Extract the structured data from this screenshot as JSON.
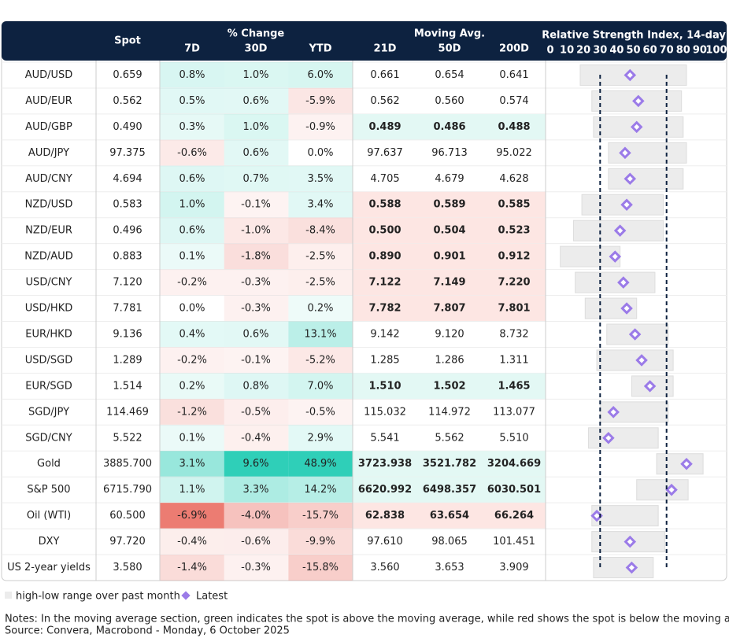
{
  "header": {
    "spot": "Spot",
    "change_group": "% Change",
    "change_cols": [
      "7D",
      "30D",
      "YTD"
    ],
    "ma_group": "Moving Avg.",
    "ma_cols": [
      "21D",
      "50D",
      "200D"
    ],
    "rsi_title": "Relative Strength Index, 14-day"
  },
  "rows": [
    {
      "name": "AUD/USD",
      "spot": "0.659",
      "change": [
        "0.8%",
        "1.0%",
        "6.0%"
      ],
      "ma": [
        "0.661",
        "0.654",
        "0.641"
      ],
      "rsi": {
        "low": 18,
        "high": 82,
        "latest": 48
      }
    },
    {
      "name": "AUD/EUR",
      "spot": "0.562",
      "change": [
        "0.5%",
        "0.6%",
        "-5.9%"
      ],
      "ma": [
        "0.562",
        "0.560",
        "0.574"
      ],
      "rsi": {
        "low": 25,
        "high": 79,
        "latest": 53
      }
    },
    {
      "name": "AUD/GBP",
      "spot": "0.490",
      "change": [
        "0.3%",
        "1.0%",
        "-0.9%"
      ],
      "ma": [
        "0.489",
        "0.486",
        "0.488"
      ],
      "rsi": {
        "low": 26,
        "high": 80,
        "latest": 52
      }
    },
    {
      "name": "AUD/JPY",
      "spot": "97.375",
      "change": [
        "-0.6%",
        "0.6%",
        "0.0%"
      ],
      "ma": [
        "97.637",
        "96.713",
        "95.022"
      ],
      "rsi": {
        "low": 35,
        "high": 82,
        "latest": 45
      }
    },
    {
      "name": "AUD/CNY",
      "spot": "4.694",
      "change": [
        "0.6%",
        "0.7%",
        "3.5%"
      ],
      "ma": [
        "4.705",
        "4.679",
        "4.628"
      ],
      "rsi": {
        "low": 35,
        "high": 80,
        "latest": 48
      }
    },
    {
      "name": "NZD/USD",
      "spot": "0.583",
      "change": [
        "1.0%",
        "-0.1%",
        "3.4%"
      ],
      "ma": [
        "0.588",
        "0.589",
        "0.585"
      ],
      "rsi": {
        "low": 19,
        "high": 68,
        "latest": 46
      }
    },
    {
      "name": "NZD/EUR",
      "spot": "0.496",
      "change": [
        "0.6%",
        "-1.0%",
        "-8.4%"
      ],
      "ma": [
        "0.500",
        "0.504",
        "0.523"
      ],
      "rsi": {
        "low": 14,
        "high": 68,
        "latest": 42
      }
    },
    {
      "name": "NZD/AUD",
      "spot": "0.883",
      "change": [
        "0.1%",
        "-1.8%",
        "-2.5%"
      ],
      "ma": [
        "0.890",
        "0.901",
        "0.912"
      ],
      "rsi": {
        "low": 6,
        "high": 42,
        "latest": 39
      }
    },
    {
      "name": "USD/CNY",
      "spot": "7.120",
      "change": [
        "-0.2%",
        "-0.3%",
        "-2.5%"
      ],
      "ma": [
        "7.122",
        "7.149",
        "7.220"
      ],
      "rsi": {
        "low": 15,
        "high": 63,
        "latest": 44
      }
    },
    {
      "name": "USD/HKD",
      "spot": "7.781",
      "change": [
        "0.0%",
        "-0.3%",
        "0.2%"
      ],
      "ma": [
        "7.782",
        "7.807",
        "7.801"
      ],
      "rsi": {
        "low": 21,
        "high": 52,
        "latest": 46
      }
    },
    {
      "name": "EUR/HKD",
      "spot": "9.136",
      "change": [
        "0.4%",
        "0.6%",
        "13.1%"
      ],
      "ma": [
        "9.142",
        "9.120",
        "8.732"
      ],
      "rsi": {
        "low": 34,
        "high": 71,
        "latest": 51
      }
    },
    {
      "name": "USD/SGD",
      "spot": "1.289",
      "change": [
        "-0.2%",
        "-0.1%",
        "-5.2%"
      ],
      "ma": [
        "1.285",
        "1.286",
        "1.311"
      ],
      "rsi": {
        "low": 28,
        "high": 74,
        "latest": 55
      }
    },
    {
      "name": "EUR/SGD",
      "spot": "1.514",
      "change": [
        "0.2%",
        "0.8%",
        "7.0%"
      ],
      "ma": [
        "1.510",
        "1.502",
        "1.465"
      ],
      "rsi": {
        "low": 49,
        "high": 74,
        "latest": 60
      }
    },
    {
      "name": "SGD/JPY",
      "spot": "114.469",
      "change": [
        "-1.2%",
        "-0.5%",
        "-0.5%"
      ],
      "ma": [
        "115.032",
        "114.972",
        "113.077"
      ],
      "rsi": {
        "low": 30,
        "high": 71,
        "latest": 38
      }
    },
    {
      "name": "SGD/CNY",
      "spot": "5.522",
      "change": [
        "0.1%",
        "-0.4%",
        "2.9%"
      ],
      "ma": [
        "5.541",
        "5.562",
        "5.510"
      ],
      "rsi": {
        "low": 23,
        "high": 65,
        "latest": 35
      }
    },
    {
      "name": "Gold",
      "spot": "3885.700",
      "change": [
        "3.1%",
        "9.6%",
        "48.9%"
      ],
      "ma": [
        "3723.938",
        "3521.782",
        "3204.669"
      ],
      "rsi": {
        "low": 64,
        "high": 92,
        "latest": 82
      }
    },
    {
      "name": "S&P 500",
      "spot": "6715.790",
      "change": [
        "1.1%",
        "3.3%",
        "14.2%"
      ],
      "ma": [
        "6620.992",
        "6498.357",
        "6030.501"
      ],
      "rsi": {
        "low": 52,
        "high": 83,
        "latest": 73
      }
    },
    {
      "name": "Oil (WTI)",
      "spot": "60.500",
      "change": [
        "-6.9%",
        "-4.0%",
        "-15.7%"
      ],
      "ma": [
        "62.838",
        "63.654",
        "66.264"
      ],
      "rsi": {
        "low": 25,
        "high": 65,
        "latest": 28
      }
    },
    {
      "name": "DXY",
      "spot": "97.720",
      "change": [
        "-0.4%",
        "-0.6%",
        "-9.9%"
      ],
      "ma": [
        "97.610",
        "98.065",
        "101.451"
      ],
      "rsi": {
        "low": 25,
        "high": 69,
        "latest": 48
      }
    },
    {
      "name": "US 2-year yields",
      "spot": "3.580",
      "change": [
        "-1.4%",
        "-0.3%",
        "-15.8%"
      ],
      "ma": [
        "3.560",
        "3.653",
        "3.909"
      ],
      "rsi": {
        "low": 26,
        "high": 62,
        "latest": 49
      }
    }
  ],
  "rsi_axis": {
    "xlim": [
      0,
      100
    ],
    "xticks": [
      0,
      10,
      20,
      30,
      40,
      50,
      60,
      70,
      80,
      90,
      100
    ],
    "reference_lines": [
      30,
      70
    ]
  },
  "colors": {
    "positive": "#2fcfb8",
    "negative": "#ec7c72",
    "ma_up": "#19b9a0",
    "ma_down": "#e0695e",
    "ma_up_bg": "#e3f8f4",
    "ma_down_bg": "#fde6e3",
    "range": "#ececec",
    "latest": "#9b7be8",
    "header": "#0d2240"
  },
  "legend": {
    "range": "high-low range over past month",
    "latest": "Latest"
  },
  "notes": "Notes: In the moving average section, green indicates the spot is above the moving average, while red shows the spot is below the moving average",
  "source": "Source: Convera, Macrobond - Monday, 6 October 2025"
}
